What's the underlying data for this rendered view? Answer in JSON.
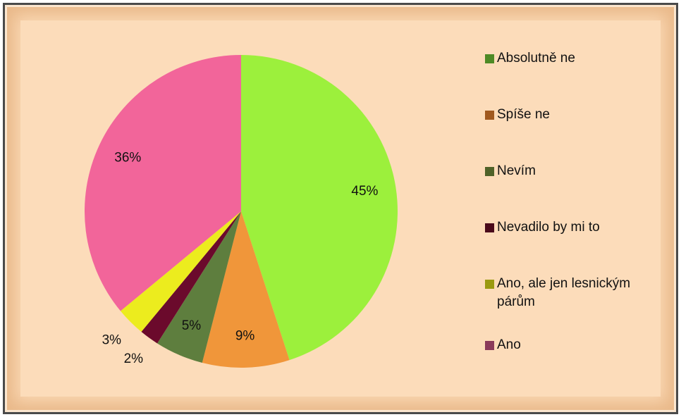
{
  "chart_data": {
    "type": "pie",
    "categories": [
      "Absolutně ne",
      "Spíše ne",
      "Nevím",
      "Nevadilo by mi to",
      "Ano, ale jen lesnickým párům",
      "Ano"
    ],
    "values": [
      45,
      9,
      5,
      2,
      3,
      36
    ],
    "value_labels": [
      "45%",
      "9%",
      "5%",
      "2%",
      "3%",
      "36%"
    ],
    "colors": [
      "#9cf03c",
      "#f0963a",
      "#5e7e3e",
      "#6b0a2c",
      "#ecec1e",
      "#f2659a"
    ],
    "legend_colors": [
      "#4e8a25",
      "#a0591f",
      "#4f6228",
      "#4a0a1a",
      "#9a9a10",
      "#8b3a5a"
    ],
    "legend": "right"
  }
}
